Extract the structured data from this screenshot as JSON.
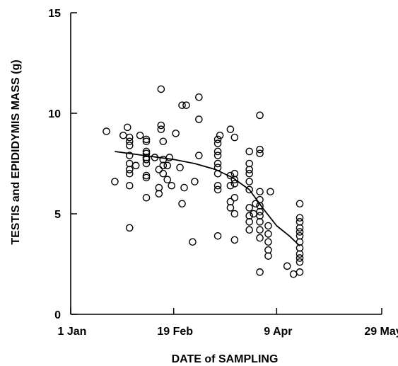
{
  "chart_data": {
    "type": "scatter",
    "title": "",
    "xlabel": "DATE of SAMPLING",
    "ylabel": "TESTIS and EPIDIDYMIS MASS (g)",
    "x_axis": {
      "kind": "date",
      "range": [
        "1 Jan",
        "29 May"
      ],
      "ticks": [
        "1 Jan",
        "19 Feb",
        "9 Apr",
        "29 May"
      ]
    },
    "y_axis": {
      "range": [
        0,
        15
      ],
      "ticks": [
        "0",
        "5",
        "10",
        "15"
      ]
    },
    "grid": false,
    "legend": "none",
    "colors": {
      "ink": "#000000",
      "background": "#ffffff"
    },
    "series": [
      {
        "kind": "points",
        "marker": "open-circle",
        "points": [
          {
            "x": "18 Jan",
            "y": 9.1
          },
          {
            "x": "22 Jan",
            "y": 6.6
          },
          {
            "x": "26 Jan",
            "y": 8.9
          },
          {
            "x": "28 Jan",
            "y": 9.3
          },
          {
            "x": "29 Jan",
            "y": 4.3
          },
          {
            "x": "29 Jan",
            "y": 6.4
          },
          {
            "x": "29 Jan",
            "y": 7.0
          },
          {
            "x": "29 Jan",
            "y": 7.2
          },
          {
            "x": "29 Jan",
            "y": 7.5
          },
          {
            "x": "29 Jan",
            "y": 7.9
          },
          {
            "x": "29 Jan",
            "y": 8.4
          },
          {
            "x": "29 Jan",
            "y": 8.6
          },
          {
            "x": "29 Jan",
            "y": 8.8
          },
          {
            "x": "1 Feb",
            "y": 7.4
          },
          {
            "x": "3 Feb",
            "y": 8.9
          },
          {
            "x": "6 Feb",
            "y": 5.8
          },
          {
            "x": "6 Feb",
            "y": 6.8
          },
          {
            "x": "6 Feb",
            "y": 6.9
          },
          {
            "x": "6 Feb",
            "y": 7.5
          },
          {
            "x": "6 Feb",
            "y": 7.7
          },
          {
            "x": "6 Feb",
            "y": 7.8
          },
          {
            "x": "6 Feb",
            "y": 8.0
          },
          {
            "x": "6 Feb",
            "y": 8.1
          },
          {
            "x": "6 Feb",
            "y": 8.6
          },
          {
            "x": "6 Feb",
            "y": 8.7
          },
          {
            "x": "10 Feb",
            "y": 7.8
          },
          {
            "x": "12 Feb",
            "y": 6.0
          },
          {
            "x": "12 Feb",
            "y": 6.3
          },
          {
            "x": "12 Feb",
            "y": 7.2
          },
          {
            "x": "14 Feb",
            "y": 7.0
          },
          {
            "x": "14 Feb",
            "y": 7.4
          },
          {
            "x": "14 Feb",
            "y": 7.7
          },
          {
            "x": "14 Feb",
            "y": 8.6
          },
          {
            "x": "13 Feb",
            "y": 9.2
          },
          {
            "x": "13 Feb",
            "y": 9.4
          },
          {
            "x": "13 Feb",
            "y": 11.2
          },
          {
            "x": "16 Feb",
            "y": 6.7
          },
          {
            "x": "16 Feb",
            "y": 7.4
          },
          {
            "x": "17 Feb",
            "y": 7.8
          },
          {
            "x": "18 Feb",
            "y": 6.4
          },
          {
            "x": "20 Feb",
            "y": 9.0
          },
          {
            "x": "22 Feb",
            "y": 7.3
          },
          {
            "x": "23 Feb",
            "y": 5.5
          },
          {
            "x": "24 Feb",
            "y": 6.3
          },
          {
            "x": "23 Feb",
            "y": 10.4
          },
          {
            "x": "25 Feb",
            "y": 10.4
          },
          {
            "x": "28 Feb",
            "y": 3.6
          },
          {
            "x": "1 Mar",
            "y": 6.6
          },
          {
            "x": "3 Mar",
            "y": 7.9
          },
          {
            "x": "3 Mar",
            "y": 9.7
          },
          {
            "x": "3 Mar",
            "y": 10.8
          },
          {
            "x": "12 Mar",
            "y": 3.9
          },
          {
            "x": "12 Mar",
            "y": 6.2
          },
          {
            "x": "12 Mar",
            "y": 6.4
          },
          {
            "x": "12 Mar",
            "y": 7.0
          },
          {
            "x": "12 Mar",
            "y": 7.3
          },
          {
            "x": "12 Mar",
            "y": 7.5
          },
          {
            "x": "12 Mar",
            "y": 7.9
          },
          {
            "x": "12 Mar",
            "y": 8.1
          },
          {
            "x": "12 Mar",
            "y": 8.5
          },
          {
            "x": "12 Mar",
            "y": 8.7
          },
          {
            "x": "13 Mar",
            "y": 8.9
          },
          {
            "x": "18 Mar",
            "y": 5.3
          },
          {
            "x": "18 Mar",
            "y": 5.6
          },
          {
            "x": "18 Mar",
            "y": 6.4
          },
          {
            "x": "18 Mar",
            "y": 6.9
          },
          {
            "x": "18 Mar",
            "y": 9.2
          },
          {
            "x": "20 Mar",
            "y": 3.7
          },
          {
            "x": "20 Mar",
            "y": 5.0
          },
          {
            "x": "20 Mar",
            "y": 5.8
          },
          {
            "x": "20 Mar",
            "y": 6.5
          },
          {
            "x": "20 Mar",
            "y": 6.7
          },
          {
            "x": "20 Mar",
            "y": 7.0
          },
          {
            "x": "20 Mar",
            "y": 8.8
          },
          {
            "x": "27 Mar",
            "y": 4.2
          },
          {
            "x": "27 Mar",
            "y": 4.6
          },
          {
            "x": "27 Mar",
            "y": 4.9
          },
          {
            "x": "27 Mar",
            "y": 5.3
          },
          {
            "x": "27 Mar",
            "y": 6.2
          },
          {
            "x": "27 Mar",
            "y": 6.6
          },
          {
            "x": "27 Mar",
            "y": 7.0
          },
          {
            "x": "27 Mar",
            "y": 7.2
          },
          {
            "x": "27 Mar",
            "y": 7.5
          },
          {
            "x": "27 Mar",
            "y": 8.1
          },
          {
            "x": "29 Mar",
            "y": 5.0
          },
          {
            "x": "30 Mar",
            "y": 5.5
          },
          {
            "x": "1 Apr",
            "y": 2.1
          },
          {
            "x": "1 Apr",
            "y": 3.8
          },
          {
            "x": "1 Apr",
            "y": 4.2
          },
          {
            "x": "1 Apr",
            "y": 4.6
          },
          {
            "x": "1 Apr",
            "y": 4.9
          },
          {
            "x": "1 Apr",
            "y": 5.1
          },
          {
            "x": "1 Apr",
            "y": 5.4
          },
          {
            "x": "1 Apr",
            "y": 5.7
          },
          {
            "x": "1 Apr",
            "y": 6.1
          },
          {
            "x": "1 Apr",
            "y": 8.0
          },
          {
            "x": "1 Apr",
            "y": 8.2
          },
          {
            "x": "1 Apr",
            "y": 9.9
          },
          {
            "x": "5 Apr",
            "y": 2.9
          },
          {
            "x": "5 Apr",
            "y": 3.2
          },
          {
            "x": "5 Apr",
            "y": 3.6
          },
          {
            "x": "5 Apr",
            "y": 4.0
          },
          {
            "x": "5 Apr",
            "y": 4.4
          },
          {
            "x": "6 Apr",
            "y": 6.1
          },
          {
            "x": "14 Apr",
            "y": 2.4
          },
          {
            "x": "17 Apr",
            "y": 2.0
          },
          {
            "x": "20 Apr",
            "y": 2.1
          },
          {
            "x": "20 Apr",
            "y": 2.6
          },
          {
            "x": "20 Apr",
            "y": 2.8
          },
          {
            "x": "20 Apr",
            "y": 3.0
          },
          {
            "x": "20 Apr",
            "y": 3.3
          },
          {
            "x": "20 Apr",
            "y": 3.6
          },
          {
            "x": "20 Apr",
            "y": 3.9
          },
          {
            "x": "20 Apr",
            "y": 4.1
          },
          {
            "x": "20 Apr",
            "y": 4.3
          },
          {
            "x": "20 Apr",
            "y": 4.6
          },
          {
            "x": "20 Apr",
            "y": 4.8
          },
          {
            "x": "20 Apr",
            "y": 5.5
          }
        ]
      },
      {
        "kind": "curve",
        "points": [
          {
            "x": "22 Jan",
            "y": 8.1
          },
          {
            "x": "5 Feb",
            "y": 7.9
          },
          {
            "x": "19 Feb",
            "y": 7.7
          },
          {
            "x": "1 Mar",
            "y": 7.5
          },
          {
            "x": "11 Mar",
            "y": 7.2
          },
          {
            "x": "19 Mar",
            "y": 6.8
          },
          {
            "x": "27 Mar",
            "y": 6.2
          },
          {
            "x": "3 Apr",
            "y": 5.2
          },
          {
            "x": "9 Apr",
            "y": 4.4
          },
          {
            "x": "15 Apr",
            "y": 3.9
          },
          {
            "x": "20 Apr",
            "y": 3.4
          }
        ]
      }
    ]
  }
}
